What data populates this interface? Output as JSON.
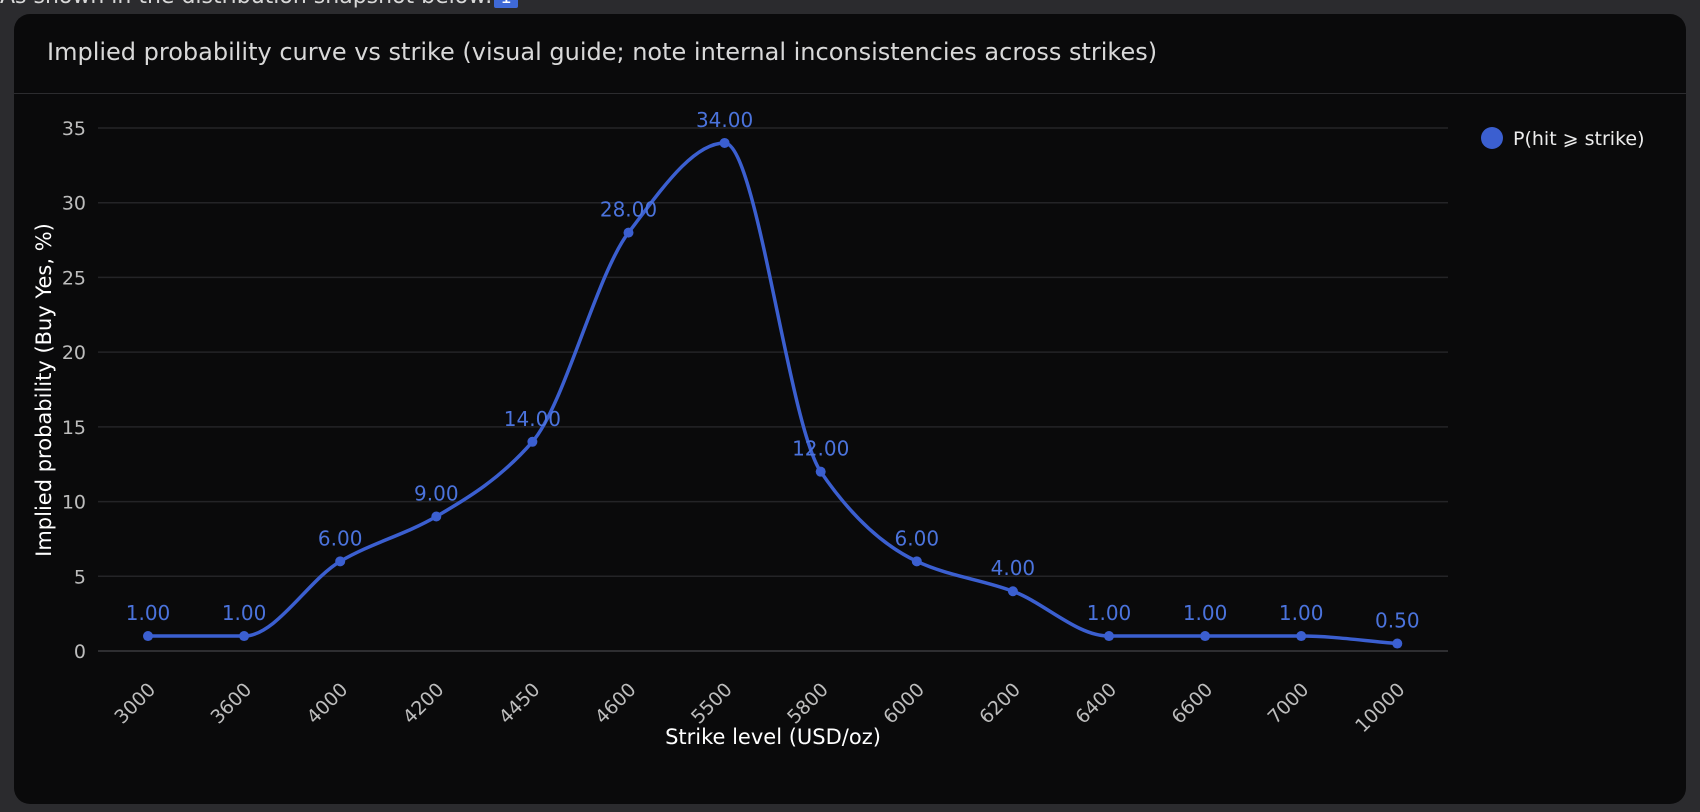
{
  "page": {
    "intro_text": "As shown in the distribution snapshot below:",
    "ref_badge": "1"
  },
  "card": {
    "title": "Implied probability curve vs strike (visual guide; note internal inconsistencies across strikes)"
  },
  "colors": {
    "series": "#3b5fd0",
    "label": "#4b73dc",
    "grid": "#242427",
    "background": "#0a0a0b"
  },
  "chart_data": {
    "type": "line",
    "smooth": true,
    "categories": [
      "3000",
      "3600",
      "4000",
      "4200",
      "4450",
      "4600",
      "5500",
      "5800",
      "6000",
      "6200",
      "6400",
      "6600",
      "7000",
      "10000"
    ],
    "series": [
      {
        "name": "P(hit ⩾ strike)",
        "values": [
          1.0,
          1.0,
          6.0,
          9.0,
          14.0,
          28.0,
          34.0,
          12.0,
          6.0,
          4.0,
          1.0,
          1.0,
          1.0,
          0.5
        ],
        "data_labels": [
          "1.00",
          "1.00",
          "6.00",
          "9.00",
          "14.00",
          "28.00",
          "34.00",
          "12.00",
          "6.00",
          "4.00",
          "1.00",
          "1.00",
          "1.00",
          "0.50"
        ]
      }
    ],
    "title": "",
    "xlabel": "Strike level (USD/oz)",
    "ylabel": "Implied probability (Buy Yes, %)",
    "ylim": [
      0,
      35
    ],
    "yticks": [
      "0",
      "5",
      "10",
      "15",
      "20",
      "25",
      "30",
      "35"
    ],
    "grid": true,
    "legend_position": "top-right"
  }
}
